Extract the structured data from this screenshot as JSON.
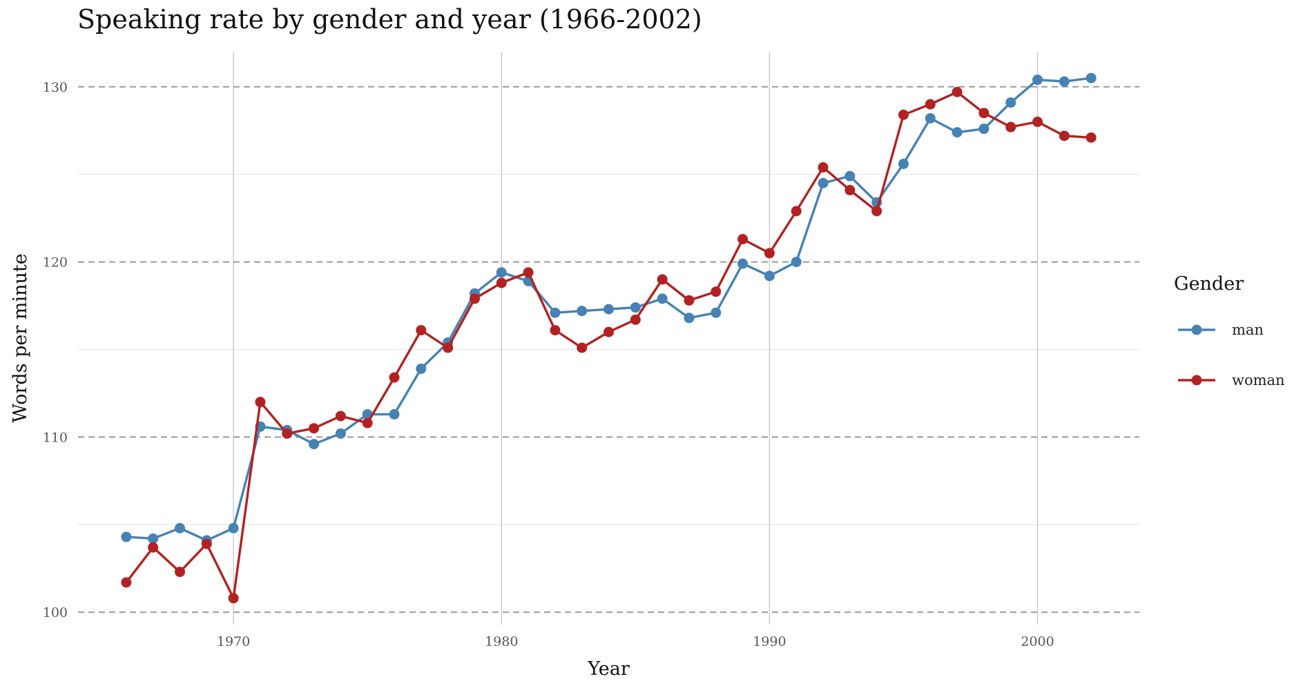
{
  "chart_data": {
    "type": "line",
    "title": "Speaking rate by gender and year (1966-2002)",
    "xlabel": "Year",
    "ylabel": "Words per minute",
    "xlim": [
      1964.2,
      2003.8
    ],
    "ylim": [
      99.3,
      132.0
    ],
    "xticks": [
      1970,
      1980,
      1990,
      2000
    ],
    "yticks": [
      100,
      110,
      120,
      130
    ],
    "y_minor_ticks": [
      105,
      115,
      125
    ],
    "grid": true,
    "major_y_grid_style": "dashed",
    "legend": {
      "title": "Gender",
      "position": "right"
    },
    "x": [
      1966,
      1967,
      1968,
      1969,
      1970,
      1971,
      1972,
      1973,
      1974,
      1975,
      1976,
      1977,
      1978,
      1979,
      1980,
      1981,
      1982,
      1983,
      1984,
      1985,
      1986,
      1987,
      1988,
      1989,
      1990,
      1991,
      1992,
      1993,
      1994,
      1995,
      1996,
      1997,
      1998,
      1999,
      2000,
      2001,
      2002
    ],
    "series": [
      {
        "name": "man",
        "color": "#4682b4",
        "values": [
          104.3,
          104.2,
          104.8,
          104.1,
          104.8,
          110.6,
          110.4,
          109.6,
          110.2,
          111.3,
          111.3,
          113.9,
          115.4,
          118.2,
          119.4,
          118.9,
          117.1,
          117.2,
          117.3,
          117.4,
          117.9,
          116.8,
          117.1,
          119.9,
          119.2,
          120.0,
          124.5,
          124.9,
          123.4,
          125.6,
          128.2,
          127.4,
          127.6,
          129.1,
          130.4,
          130.3,
          130.5
        ]
      },
      {
        "name": "woman",
        "color": "#b22222",
        "values": [
          101.7,
          103.7,
          102.3,
          103.9,
          100.8,
          112.0,
          110.2,
          110.5,
          111.2,
          110.8,
          113.4,
          116.1,
          115.1,
          117.9,
          118.8,
          119.4,
          116.1,
          115.1,
          116.0,
          116.7,
          119.0,
          117.8,
          118.3,
          121.3,
          120.5,
          122.9,
          125.4,
          124.1,
          122.9,
          128.4,
          129.0,
          129.7,
          128.5,
          127.7,
          128.0,
          127.2,
          127.1
        ]
      }
    ]
  }
}
